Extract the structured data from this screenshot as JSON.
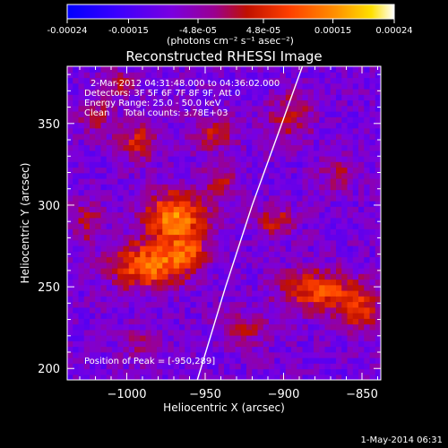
{
  "colorbar": {
    "tick_labels": [
      "-0.00024",
      "-0.00015",
      "-4.8e-05",
      "4.8e-05",
      "0.00015",
      "0.00024"
    ],
    "tick_values": [
      -0.00024,
      -0.00015,
      -4.8e-05,
      4.8e-05,
      0.00015,
      0.00024
    ],
    "range": [
      -0.00024,
      0.00024
    ],
    "units_label": "(photons cm⁻² s⁻¹ asec⁻²)",
    "colors": [
      "#0000ff",
      "#3a00ff",
      "#7a00e0",
      "#a000a0",
      "#c01000",
      "#ff4000",
      "#ff9000",
      "#ffe000",
      "#ffffff"
    ]
  },
  "chart_data": {
    "type": "heatmap",
    "title": "Reconstructed RHESSI Image",
    "xlabel": "Heliocentric X (arcsec)",
    "ylabel": "Heliocentric Y (arcsec)",
    "xlim": [
      -1038,
      -838
    ],
    "ylim": [
      193,
      385
    ],
    "x_ticks": [
      -1000,
      -950,
      -900,
      -850
    ],
    "x_tick_labels": [
      "−1000",
      "−950",
      "−900",
      "−850"
    ],
    "y_ticks": [
      200,
      250,
      300,
      350
    ],
    "y_tick_labels": [
      "200",
      "250",
      "300",
      "350"
    ],
    "annotations": [
      "2-Mar-2012 04:31:48.000 to 04:36:02.000",
      "Detectors: 3F 5F 6F 7F 8F 9F, Att 0",
      "Energy Range: 25.0 - 50.0 keV",
      "Clean     Total counts: 3.78E+03"
    ],
    "peak_label": "Position of Peak = [-950,289]",
    "peak_position": [
      -950,
      289
    ],
    "sources": [
      {
        "x": -969,
        "y": 293,
        "sx": 14,
        "sy": 11,
        "amp": 0.00023
      },
      {
        "x": -987,
        "y": 263,
        "sx": 16,
        "sy": 10,
        "amp": 0.00021
      },
      {
        "x": -962,
        "y": 270,
        "sx": 9,
        "sy": 8,
        "amp": 0.00014
      },
      {
        "x": -993,
        "y": 340,
        "sx": 9,
        "sy": 9,
        "amp": 0.00012
      },
      {
        "x": -945,
        "y": 345,
        "sx": 11,
        "sy": 8,
        "amp": 0.0001
      },
      {
        "x": -940,
        "y": 315,
        "sx": 8,
        "sy": 8,
        "amp": 9e-05
      },
      {
        "x": -905,
        "y": 290,
        "sx": 8,
        "sy": 7,
        "amp": 0.00012
      },
      {
        "x": -880,
        "y": 248,
        "sx": 16,
        "sy": 9,
        "amp": 0.00017
      },
      {
        "x": -852,
        "y": 238,
        "sx": 10,
        "sy": 10,
        "amp": 0.00014
      },
      {
        "x": -895,
        "y": 355,
        "sx": 10,
        "sy": 10,
        "amp": 0.00011
      },
      {
        "x": -1025,
        "y": 290,
        "sx": 7,
        "sy": 9,
        "amp": 0.0001
      },
      {
        "x": -1020,
        "y": 355,
        "sx": 8,
        "sy": 8,
        "amp": 9e-05
      },
      {
        "x": -925,
        "y": 225,
        "sx": 12,
        "sy": 8,
        "amp": 9e-05
      },
      {
        "x": -990,
        "y": 215,
        "sx": 10,
        "sy": 8,
        "amp": 6e-05
      },
      {
        "x": -865,
        "y": 320,
        "sx": 8,
        "sy": 8,
        "amp": 8e-05
      },
      {
        "x": -1005,
        "y": 375,
        "sx": 8,
        "sy": 6,
        "amp": 8e-05
      }
    ],
    "background_level": -9e-05,
    "limb_curve": [
      [
        -955,
        193
      ],
      [
        -937,
        250
      ],
      [
        -920,
        300
      ],
      [
        -903,
        345
      ],
      [
        -888,
        385
      ]
    ]
  },
  "footer": {
    "date": "1-May-2014 06:31"
  }
}
